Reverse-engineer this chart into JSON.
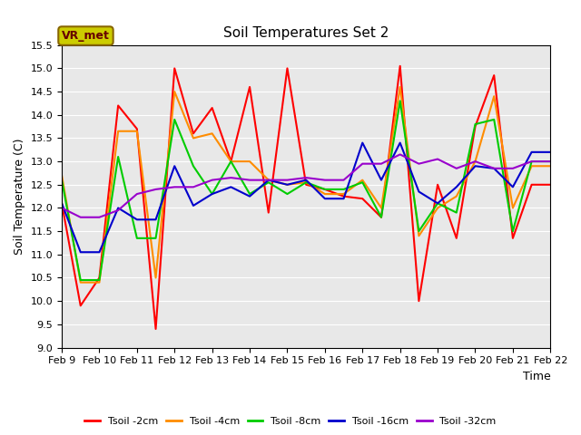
{
  "title": "Soil Temperatures Set 2",
  "xlabel": "Time",
  "ylabel": "Soil Temperature (C)",
  "xlim": [
    0,
    13
  ],
  "ylim": [
    9.0,
    15.5
  ],
  "yticks": [
    9.0,
    9.5,
    10.0,
    10.5,
    11.0,
    11.5,
    12.0,
    12.5,
    13.0,
    13.5,
    14.0,
    14.5,
    15.0,
    15.5
  ],
  "xtick_labels": [
    "Feb 9",
    "Feb 10",
    "Feb 11",
    "Feb 12",
    "Feb 13",
    "Feb 14",
    "Feb 15",
    "Feb 16",
    "Feb 17",
    "Feb 18",
    "Feb 19",
    "Feb 20",
    "Feb 21",
    "Feb 22"
  ],
  "annotation_text": "VR_met",
  "annotation_bg": "#cccc00",
  "annotation_fg": "#660000",
  "annotation_edge": "#886600",
  "bg_color": "#e8e8e8",
  "grid_color": "#ffffff",
  "series": {
    "Tsoil -2cm": {
      "color": "#ff0000",
      "x": [
        0.0,
        0.5,
        1.0,
        1.5,
        2.0,
        2.5,
        3.0,
        3.5,
        4.0,
        4.5,
        5.0,
        5.5,
        6.0,
        6.5,
        7.0,
        7.5,
        8.0,
        8.5,
        9.0,
        9.5,
        10.0,
        10.5,
        11.0,
        11.5,
        12.0,
        12.5,
        13.0
      ],
      "y": [
        12.1,
        9.9,
        10.5,
        14.2,
        13.7,
        9.4,
        15.0,
        13.6,
        14.15,
        13.0,
        14.6,
        11.9,
        15.0,
        12.5,
        12.4,
        12.25,
        12.2,
        11.8,
        15.05,
        10.0,
        12.5,
        11.35,
        13.75,
        14.85,
        11.35,
        12.5,
        12.5
      ]
    },
    "Tsoil -4cm": {
      "color": "#ff8c00",
      "x": [
        0.0,
        0.5,
        1.0,
        1.5,
        2.0,
        2.5,
        3.0,
        3.5,
        4.0,
        4.5,
        5.0,
        5.5,
        6.0,
        6.5,
        7.0,
        7.5,
        8.0,
        8.5,
        9.0,
        9.5,
        10.0,
        10.5,
        11.0,
        11.5,
        12.0,
        12.5,
        13.0
      ],
      "y": [
        12.7,
        10.4,
        10.4,
        13.65,
        13.65,
        10.5,
        14.5,
        13.5,
        13.6,
        13.0,
        13.0,
        12.6,
        12.5,
        12.55,
        12.3,
        12.3,
        12.6,
        12.0,
        14.6,
        11.4,
        12.0,
        12.25,
        13.0,
        14.4,
        12.0,
        12.9,
        12.9
      ]
    },
    "Tsoil -8cm": {
      "color": "#00cc00",
      "x": [
        0.0,
        0.5,
        1.0,
        1.5,
        2.0,
        2.5,
        3.0,
        3.5,
        4.0,
        4.5,
        5.0,
        5.5,
        6.0,
        6.5,
        7.0,
        7.5,
        8.0,
        8.5,
        9.0,
        9.5,
        10.0,
        10.5,
        11.0,
        11.5,
        12.0,
        12.5,
        13.0
      ],
      "y": [
        12.6,
        10.45,
        10.45,
        13.1,
        11.35,
        11.35,
        13.9,
        12.9,
        12.3,
        13.0,
        12.3,
        12.55,
        12.3,
        12.55,
        12.4,
        12.4,
        12.55,
        11.8,
        14.3,
        11.5,
        12.1,
        11.9,
        13.8,
        13.9,
        11.5,
        13.0,
        13.0
      ]
    },
    "Tsoil -16cm": {
      "color": "#0000cc",
      "x": [
        0.0,
        0.5,
        1.0,
        1.5,
        2.0,
        2.5,
        3.0,
        3.5,
        4.0,
        4.5,
        5.0,
        5.5,
        6.0,
        6.5,
        7.0,
        7.5,
        8.0,
        8.5,
        9.0,
        9.5,
        10.0,
        10.5,
        11.0,
        11.5,
        12.0,
        12.5,
        13.0
      ],
      "y": [
        12.1,
        11.05,
        11.05,
        12.0,
        11.75,
        11.75,
        12.9,
        12.05,
        12.3,
        12.45,
        12.25,
        12.6,
        12.5,
        12.6,
        12.2,
        12.2,
        13.4,
        12.6,
        13.4,
        12.35,
        12.1,
        12.45,
        12.9,
        12.85,
        12.45,
        13.2,
        13.2
      ]
    },
    "Tsoil -32cm": {
      "color": "#9900cc",
      "x": [
        0.0,
        0.5,
        1.0,
        1.5,
        2.0,
        2.5,
        3.0,
        3.5,
        4.0,
        4.5,
        5.0,
        5.5,
        6.0,
        6.5,
        7.0,
        7.5,
        8.0,
        8.5,
        9.0,
        9.5,
        10.0,
        10.5,
        11.0,
        11.5,
        12.0,
        12.5,
        13.0
      ],
      "y": [
        12.0,
        11.8,
        11.8,
        11.95,
        12.3,
        12.4,
        12.45,
        12.45,
        12.6,
        12.65,
        12.6,
        12.6,
        12.6,
        12.65,
        12.6,
        12.6,
        12.95,
        12.95,
        13.15,
        12.95,
        13.05,
        12.85,
        13.0,
        12.85,
        12.85,
        13.0,
        13.0
      ]
    }
  }
}
